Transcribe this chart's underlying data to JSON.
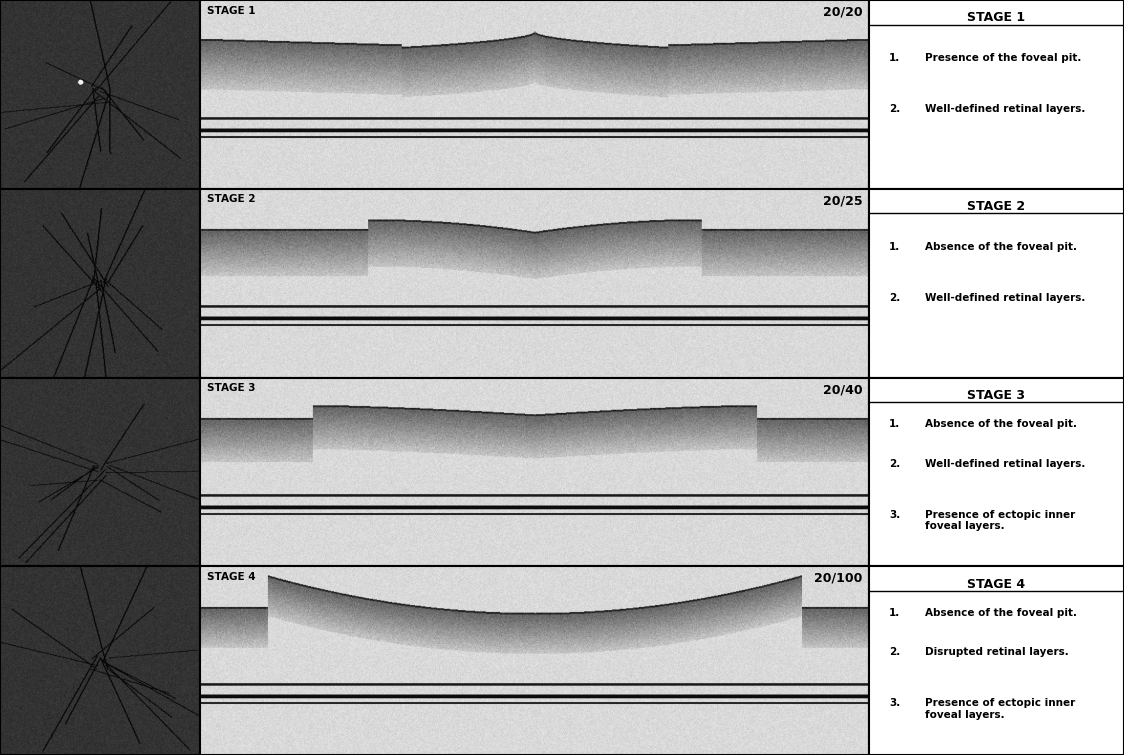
{
  "bg_color": "#ffffff",
  "border_color": "#000000",
  "stages": [
    {
      "stage_num": "STAGE 1",
      "acuity": "20/20",
      "points": [
        "Presence of the foveal pit.",
        "Well-defined retinal layers."
      ]
    },
    {
      "stage_num": "STAGE 2",
      "acuity": "20/25",
      "points": [
        "Absence of the foveal pit.",
        "Well-defined retinal layers."
      ]
    },
    {
      "stage_num": "STAGE 3",
      "acuity": "20/40",
      "points": [
        "Absence of the foveal pit.",
        "Well-defined retinal layers.",
        "Presence of ectopic inner\nfoveal layers."
      ]
    },
    {
      "stage_num": "STAGE 4",
      "acuity": "20/100",
      "points": [
        "Absence of the foveal pit.",
        "Disrupted retinal layers.",
        "Presence of ectopic inner\nfoveal layers."
      ]
    }
  ],
  "title_fontsize": 9,
  "body_fontsize": 7.5,
  "acuity_fontsize": 9,
  "stage_label_fontsize": 7.5
}
